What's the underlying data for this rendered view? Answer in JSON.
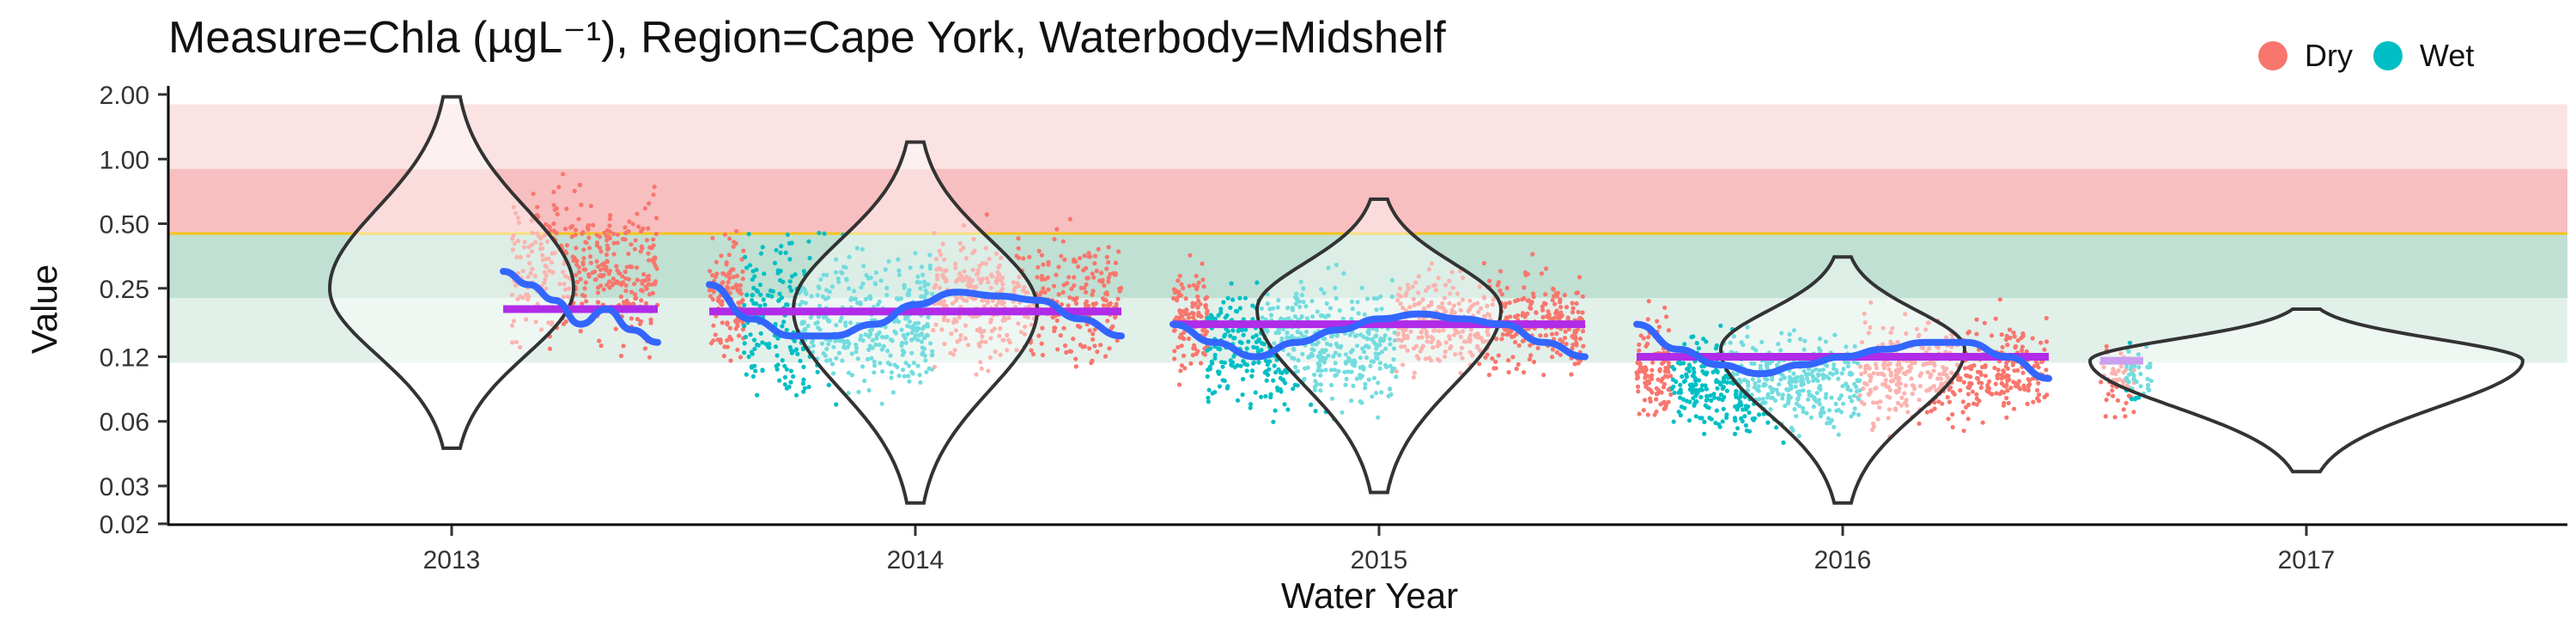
{
  "chart_data": {
    "type": "violin-scatter",
    "title": "Measure=Chla (µgL⁻¹), Region=Cape York, Waterbody=Midshelf",
    "xlabel": "Water Year",
    "ylabel": "Value",
    "y_scale": "log",
    "ylim": [
      0.02,
      2.0
    ],
    "y_ticks": [
      {
        "value": 0.02,
        "label": "0.02"
      },
      {
        "value": 0.03,
        "label": "0.03"
      },
      {
        "value": 0.06,
        "label": "0.06"
      },
      {
        "value": 0.12,
        "label": "0.12"
      },
      {
        "value": 0.25,
        "label": "0.25"
      },
      {
        "value": 0.5,
        "label": "0.50"
      },
      {
        "value": 1.0,
        "label": "1.00"
      },
      {
        "value": 2.0,
        "label": "2.00"
      }
    ],
    "categories": [
      "2013",
      "2014",
      "2015",
      "2016",
      "2017"
    ],
    "threshold": {
      "value": 0.45,
      "color": "#f5c518"
    },
    "bands": [
      {
        "from": 0.9,
        "to": 1.8,
        "color": "#fbe3e3"
      },
      {
        "from": 0.45,
        "to": 0.9,
        "color": "#f7bfc0"
      },
      {
        "from": 0.225,
        "to": 0.45,
        "color": "#bfe0d2"
      },
      {
        "from": 0.1125,
        "to": 0.225,
        "color": "#e2f0ea"
      }
    ],
    "legend": {
      "placement": "top-right",
      "entries": [
        {
          "name": "Dry",
          "color": "#f8766d"
        },
        {
          "name": "Wet",
          "color": "#00bfc4"
        }
      ]
    },
    "colors": {
      "dry": "#f8766d",
      "wet": "#00bfc4",
      "smooth": "#3366ff",
      "annual_mean": "#b02ce8"
    },
    "years": [
      {
        "year": "2013",
        "violin": {
          "min": 0.045,
          "max": 1.95,
          "median": 0.25,
          "pre_dry": false
        },
        "dry_range": [
          0.05,
          1.95
        ],
        "wet_range": null,
        "annual_mean": 0.2,
        "smooth": [
          0.3,
          0.26,
          0.22,
          0.17,
          0.2,
          0.16,
          0.14
        ]
      },
      {
        "year": "2014",
        "violin": {
          "min": 0.025,
          "max": 1.2,
          "median": 0.2,
          "pre_dry": true
        },
        "dry_range": [
          0.05,
          1.0
        ],
        "wet_range": [
          0.028,
          1.1
        ],
        "annual_mean": 0.195,
        "smooth": [
          0.26,
          0.18,
          0.15,
          0.15,
          0.17,
          0.21,
          0.24,
          0.23,
          0.22,
          0.18,
          0.15
        ]
      },
      {
        "year": "2015",
        "violin": {
          "min": 0.028,
          "max": 0.65,
          "median": 0.2,
          "pre_dry": true
        },
        "dry_range": [
          0.05,
          0.6
        ],
        "wet_range": [
          0.03,
          0.6
        ],
        "annual_mean": 0.17,
        "smooth": [
          0.17,
          0.14,
          0.12,
          0.14,
          0.16,
          0.18,
          0.19,
          0.18,
          0.17,
          0.14,
          0.12
        ]
      },
      {
        "year": "2016",
        "violin": {
          "min": 0.025,
          "max": 0.35,
          "median": 0.13,
          "pre_dry": true
        },
        "dry_range": [
          0.03,
          0.35
        ],
        "wet_range": [
          0.028,
          0.3
        ],
        "annual_mean": 0.12,
        "smooth": [
          0.17,
          0.13,
          0.11,
          0.1,
          0.11,
          0.12,
          0.13,
          0.14,
          0.14,
          0.12,
          0.095
        ]
      },
      {
        "year": "2017",
        "violin": {
          "min": 0.035,
          "max": 0.2,
          "median": 0.115,
          "pre_dry": true
        },
        "dry_range": [
          0.035,
          0.25
        ],
        "wet_range": [
          0.05,
          0.2
        ],
        "annual_mean": 0.115,
        "smooth": []
      }
    ]
  }
}
